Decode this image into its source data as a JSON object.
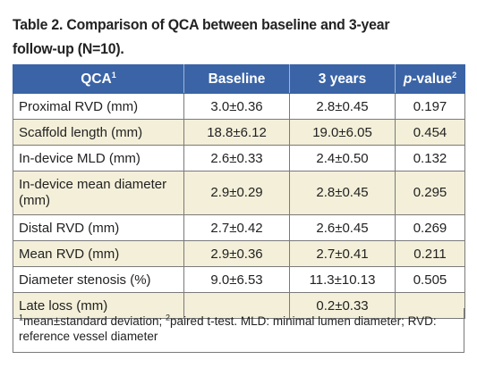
{
  "title": "Table 2. Comparison of QCA between baseline and 3-year follow-up (N=10).",
  "headers": {
    "qca": "QCA",
    "qca_sup": "1",
    "baseline": "Baseline",
    "three_years": "3 years",
    "pvalue": "p",
    "pvalue_rest": "-value",
    "pvalue_sup": "2"
  },
  "rows": [
    {
      "label": "Proximal RVD (mm)",
      "baseline": "3.0±0.36",
      "three_years": "2.8±0.45",
      "pvalue": "0.197"
    },
    {
      "label": "Scaffold length (mm)",
      "baseline": "18.8±6.12",
      "three_years": "19.0±6.05",
      "pvalue": "0.454"
    },
    {
      "label": "In-device MLD (mm)",
      "baseline": "2.6±0.33",
      "three_years": "2.4±0.50",
      "pvalue": "0.132"
    },
    {
      "label": "In-device mean diameter (mm)",
      "baseline": "2.9±0.29",
      "three_years": "2.8±0.45",
      "pvalue": "0.295"
    },
    {
      "label": "Distal RVD (mm)",
      "baseline": "2.7±0.42",
      "three_years": "2.6±0.45",
      "pvalue": "0.269"
    },
    {
      "label": "Mean RVD (mm)",
      "baseline": "2.9±0.36",
      "three_years": "2.7±0.41",
      "pvalue": "0.211"
    },
    {
      "label": "Diameter stenosis (%)",
      "baseline": "9.0±6.53",
      "three_years": "11.3±10.13",
      "pvalue": "0.505"
    },
    {
      "label": "Late loss (mm)",
      "baseline": "",
      "three_years": "0.2±0.33",
      "pvalue": ""
    }
  ],
  "footnote": {
    "sup1": "1",
    "text1": "mean±standard deviation; ",
    "sup2": "2",
    "text2": "paired t-test. MLD: minimal lumen diameter; RVD: reference vessel diameter"
  },
  "colors": {
    "header_bg": "#3b64a6",
    "alt_row_bg": "#f3efd9"
  }
}
